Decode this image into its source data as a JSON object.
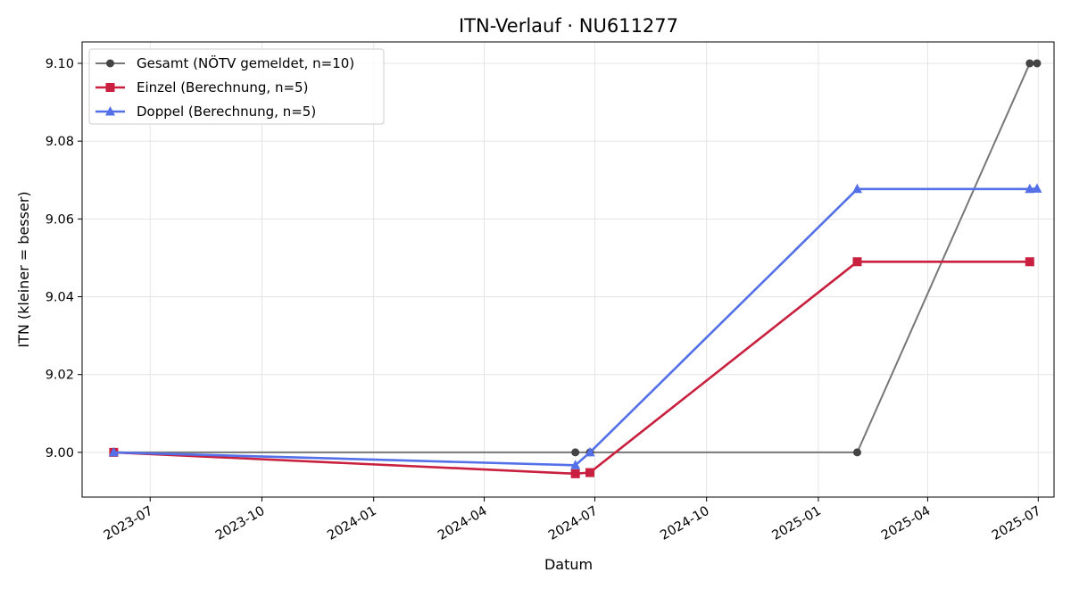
{
  "chart_data": {
    "type": "line",
    "title": "ITN-Verlauf · NU611277",
    "xlabel": "Datum",
    "ylabel": "ITN  (kleiner = besser)",
    "x_type": "date",
    "xlim": [
      "2023-05-06",
      "2025-07-14"
    ],
    "ylim": [
      8.9885,
      9.1055
    ],
    "grid": true,
    "legend_position": "top-left",
    "x_ticks": [
      "2023-07",
      "2023-10",
      "2024-01",
      "2024-04",
      "2024-07",
      "2024-10",
      "2025-01",
      "2025-04",
      "2025-07"
    ],
    "x_tick_dates": [
      "2023-07-01",
      "2023-10-01",
      "2024-01-01",
      "2024-04-01",
      "2024-07-01",
      "2024-10-01",
      "2025-01-01",
      "2025-04-01",
      "2025-07-01"
    ],
    "y_ticks": [
      "9.00",
      "9.02",
      "9.04",
      "9.06",
      "9.08",
      "9.10"
    ],
    "y_tick_values": [
      9.0,
      9.02,
      9.04,
      9.06,
      9.08,
      9.1
    ],
    "series": [
      {
        "name": "Gesamt (NÖTV gemeldet, n=10)",
        "color": "#777777",
        "marker_color": "#444444",
        "marker": "circle",
        "points": [
          {
            "x": "2023-06-01",
            "y": 9.0
          },
          {
            "x": "2024-06-15",
            "y": 9.0
          },
          {
            "x": "2024-06-27",
            "y": 9.0
          },
          {
            "x": "2025-02-02",
            "y": 9.0
          },
          {
            "x": "2025-06-24",
            "y": 9.1
          },
          {
            "x": "2025-06-30",
            "y": 9.1
          }
        ]
      },
      {
        "name": "Einzel (Berechnung, n=5)",
        "color": "#c8203e",
        "marker_color": "#c8203e",
        "marker": "square",
        "points": [
          {
            "x": "2023-06-01",
            "y": 9.0
          },
          {
            "x": "2024-06-15",
            "y": 8.9945
          },
          {
            "x": "2024-06-27",
            "y": 8.9948
          },
          {
            "x": "2025-02-02",
            "y": 9.049
          },
          {
            "x": "2025-06-24",
            "y": 9.049
          }
        ]
      },
      {
        "name": "Doppel (Berechnung, n=5)",
        "color": "#5470e8",
        "marker_color": "#5470e8",
        "marker": "triangle",
        "points": [
          {
            "x": "2023-06-01",
            "y": 9.0
          },
          {
            "x": "2024-06-15",
            "y": 8.9967
          },
          {
            "x": "2024-06-27",
            "y": 9.0
          },
          {
            "x": "2025-02-02",
            "y": 9.0677
          },
          {
            "x": "2025-06-24",
            "y": 9.0677
          },
          {
            "x": "2025-06-30",
            "y": 9.0678
          }
        ]
      }
    ]
  }
}
